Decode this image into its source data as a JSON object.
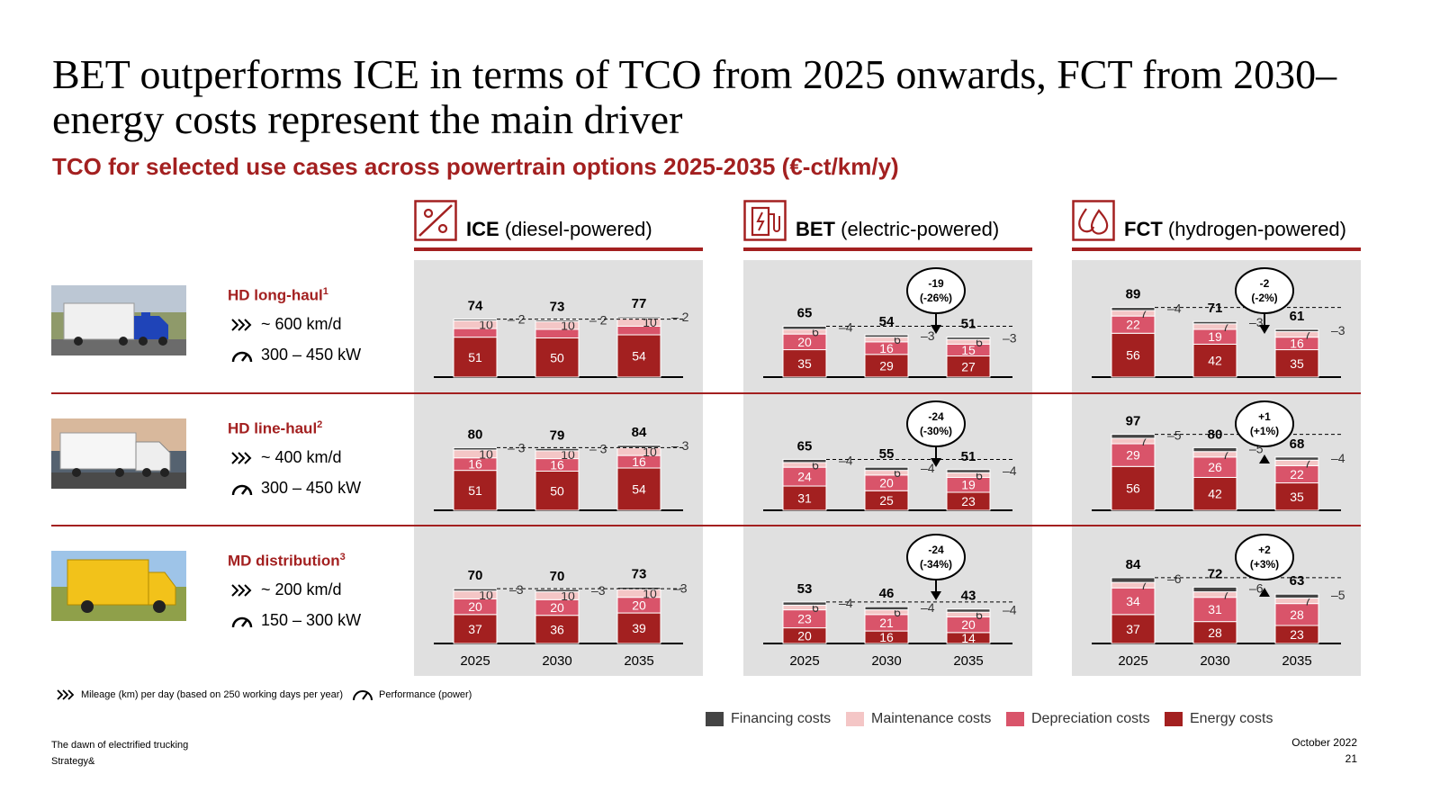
{
  "title": "BET outperforms ICE in terms of TCO from 2025 onwards, FCT from 2030– energy costs represent the main driver",
  "subtitle": "TCO for selected use cases across powertrain options 2025-2035 (€-ct/km/y)",
  "colors": {
    "accent": "#a32020",
    "financing": "#444444",
    "maintenance": "#f4c6c6",
    "depreciation": "#d9546a",
    "energy": "#a32020",
    "panel": "#e0e0e0"
  },
  "groups": [
    {
      "abbr": "ICE",
      "label": "(diesel-powered)",
      "icon": "engine-icon"
    },
    {
      "abbr": "BET",
      "label": "(electric-powered)",
      "icon": "charging-station-icon"
    },
    {
      "abbr": "FCT",
      "label": "(hydrogen-powered)",
      "icon": "hydrogen-drop-icon"
    }
  ],
  "rows": [
    {
      "name": "HD long-haul",
      "sup": "1",
      "mileage": "~ 600 km/d",
      "power": "300 – 450 kW",
      "image": "blue-semi-truck-photo"
    },
    {
      "name": "HD line-haul",
      "sup": "2",
      "mileage": "~ 400 km/d",
      "power": "300 – 450 kW",
      "image": "white-truck-photo"
    },
    {
      "name": "MD distribution",
      "sup": "3",
      "mileage": "~ 200 km/d",
      "power": "150 – 300 kW",
      "image": "yellow-van-photo"
    }
  ],
  "chart_data": {
    "type": "bar",
    "stacked": true,
    "x": [
      "2025",
      "2030",
      "2035"
    ],
    "stack_order": [
      "Energy costs",
      "Depreciation costs",
      "Maintenance costs",
      "Financing costs"
    ],
    "legend": [
      "Financing costs",
      "Maintenance costs",
      "Depreciation costs",
      "Energy costs"
    ],
    "panels": [
      {
        "row": "HD long-haul",
        "group": "ICE",
        "totals": [
          74,
          73,
          77
        ],
        "energy": [
          51,
          50,
          54
        ],
        "depreciation": [
          11,
          11,
          11
        ],
        "maintenance": [
          10,
          10,
          10
        ],
        "financing": [
          2,
          2,
          2
        ],
        "callout": null
      },
      {
        "row": "HD long-haul",
        "group": "BET",
        "totals": [
          65,
          54,
          51
        ],
        "energy": [
          35,
          29,
          27
        ],
        "depreciation": [
          20,
          16,
          15
        ],
        "maintenance": [
          6,
          6,
          6
        ],
        "financing": [
          4,
          3,
          3
        ],
        "callout": {
          "value": "-19",
          "pct": "(-26%)",
          "direction": "down"
        }
      },
      {
        "row": "HD long-haul",
        "group": "FCT",
        "totals": [
          89,
          71,
          61
        ],
        "energy": [
          56,
          42,
          35
        ],
        "depreciation": [
          22,
          19,
          16
        ],
        "maintenance": [
          7,
          7,
          7
        ],
        "financing": [
          4,
          3,
          3
        ],
        "callout": {
          "value": "-2",
          "pct": "(-2%)",
          "direction": "down"
        }
      },
      {
        "row": "HD line-haul",
        "group": "ICE",
        "totals": [
          80,
          79,
          84
        ],
        "energy": [
          51,
          50,
          54
        ],
        "depreciation": [
          16,
          16,
          16
        ],
        "maintenance": [
          10,
          10,
          10
        ],
        "financing": [
          3,
          3,
          3
        ],
        "callout": null
      },
      {
        "row": "HD line-haul",
        "group": "BET",
        "totals": [
          65,
          55,
          51
        ],
        "energy": [
          31,
          25,
          23
        ],
        "depreciation": [
          24,
          20,
          19
        ],
        "maintenance": [
          6,
          6,
          6
        ],
        "financing": [
          4,
          4,
          4
        ],
        "callout": {
          "value": "-24",
          "pct": "(-30%)",
          "direction": "down"
        }
      },
      {
        "row": "HD line-haul",
        "group": "FCT",
        "totals": [
          97,
          80,
          68
        ],
        "energy": [
          56,
          42,
          35
        ],
        "depreciation": [
          29,
          26,
          22
        ],
        "maintenance": [
          7,
          7,
          7
        ],
        "financing": [
          5,
          5,
          4
        ],
        "callout": {
          "value": "+1",
          "pct": "(+1%)",
          "direction": "up"
        }
      },
      {
        "row": "MD distribution",
        "group": "ICE",
        "totals": [
          70,
          70,
          73
        ],
        "energy": [
          37,
          36,
          39
        ],
        "depreciation": [
          20,
          20,
          20
        ],
        "maintenance": [
          10,
          10,
          10
        ],
        "financing": [
          3,
          3,
          3
        ],
        "callout": null
      },
      {
        "row": "MD distribution",
        "group": "BET",
        "totals": [
          53,
          46,
          43
        ],
        "energy": [
          20,
          16,
          14
        ],
        "depreciation": [
          23,
          21,
          20
        ],
        "maintenance": [
          6,
          6,
          6
        ],
        "financing": [
          4,
          4,
          4
        ],
        "callout": {
          "value": "-24",
          "pct": "(-34%)",
          "direction": "down"
        }
      },
      {
        "row": "MD distribution",
        "group": "FCT",
        "totals": [
          84,
          72,
          63
        ],
        "energy": [
          37,
          28,
          23
        ],
        "depreciation": [
          34,
          31,
          28
        ],
        "maintenance": [
          7,
          7,
          7
        ],
        "financing": [
          6,
          6,
          5
        ],
        "callout": {
          "value": "+2",
          "pct": "(+3%)",
          "direction": "up"
        }
      }
    ]
  },
  "footnote": {
    "mileage_legend": "Mileage (km) per day (based on 250 working days per year)",
    "power_legend": "Performance (power)"
  },
  "footer": {
    "doc_title": "The dawn of electrified trucking",
    "company": "Strategy&",
    "date": "October 2022",
    "page": "21"
  }
}
